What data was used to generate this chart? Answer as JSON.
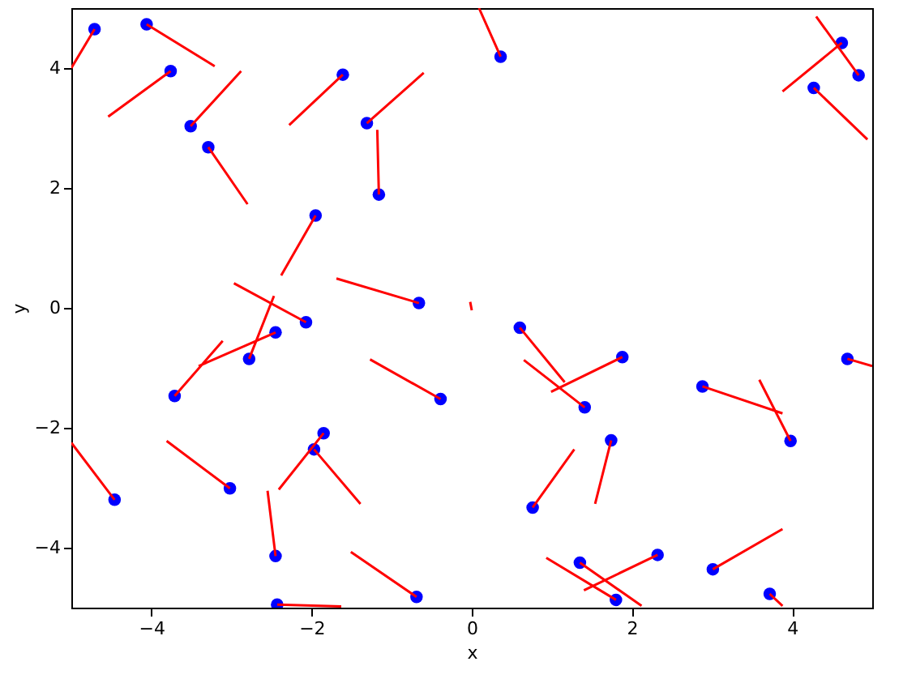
{
  "chart_data": {
    "type": "scatter",
    "xlabel": "x",
    "ylabel": "y",
    "xlim": [
      -5,
      5
    ],
    "ylim": [
      -5,
      5
    ],
    "xticks": [
      -4,
      -2,
      0,
      2,
      4
    ],
    "yticks": [
      -4,
      -2,
      0,
      2,
      4
    ],
    "grid": false,
    "series": [
      {
        "color": "#0000ff",
        "marker": "circle",
        "x": [
          -4.71,
          -4.06,
          -3.76,
          -3.51,
          -3.29,
          -1.61,
          -1.95,
          -1.31,
          -1.16,
          0.36,
          -0.66,
          -2.07,
          -2.45,
          -2.78,
          -3.71,
          -4.46,
          -3.02,
          -1.85,
          -1.97,
          -2.45,
          -2.43,
          -0.39,
          0.6,
          1.41,
          1.88,
          0.76,
          1.74,
          -0.69,
          1.35,
          1.8,
          2.32,
          2.88,
          3.98,
          4.69,
          3.01,
          3.72,
          4.62,
          4.83,
          4.27
        ],
        "values": [
          4.65,
          4.73,
          3.95,
          3.03,
          2.68,
          3.89,
          1.54,
          3.08,
          1.89,
          4.19,
          0.08,
          -0.24,
          -0.41,
          -0.85,
          -1.47,
          -3.2,
          -3.01,
          -2.09,
          -2.36,
          -4.14,
          -4.95,
          -1.52,
          -0.33,
          -1.66,
          -0.82,
          -3.33,
          -2.21,
          -4.82,
          -4.25,
          -4.87,
          -4.12,
          -1.31,
          -2.22,
          -0.85,
          -4.36,
          -4.77,
          4.42,
          3.88,
          3.67
        ]
      },
      {
        "type": "line",
        "color": "#ff0000",
        "marker": "none",
        "line_style": "solid",
        "x": [
          -4.71,
          -5.0,
          null,
          -4.06,
          -3.21,
          null,
          -3.76,
          -4.54,
          null,
          -3.51,
          -2.88,
          null,
          -3.29,
          -2.8,
          null,
          -1.61,
          -2.28,
          null,
          -1.95,
          -2.38,
          null,
          -1.31,
          -0.6,
          null,
          -1.16,
          -1.18,
          null,
          0.36,
          0.09,
          null,
          -0.66,
          -1.69,
          null,
          -0.02,
          0.0,
          null,
          -2.07,
          -2.97,
          null,
          -2.45,
          -3.41,
          null,
          -2.78,
          -2.47,
          null,
          -3.71,
          -3.11,
          null,
          -4.46,
          -5.0,
          null,
          -3.02,
          -3.81,
          null,
          -1.85,
          -2.41,
          null,
          -1.97,
          -1.39,
          null,
          -2.45,
          -2.55,
          null,
          -2.43,
          -1.63,
          null,
          -0.39,
          -1.27,
          null,
          0.6,
          1.16,
          null,
          1.41,
          0.65,
          null,
          1.88,
          0.99,
          null,
          0.76,
          1.28,
          null,
          1.74,
          1.54,
          null,
          -0.69,
          -1.51,
          null,
          1.35,
          2.12,
          null,
          1.8,
          0.93,
          null,
          2.32,
          1.4,
          null,
          2.88,
          3.88,
          null,
          3.98,
          3.59,
          null,
          4.69,
          5.0,
          null,
          3.01,
          3.88,
          null,
          3.72,
          3.88,
          null,
          4.62,
          3.88,
          null,
          4.83,
          4.3,
          null,
          4.27,
          4.94
        ],
        "values": [
          4.65,
          4.0,
          null,
          4.73,
          4.03,
          null,
          3.95,
          3.19,
          null,
          3.03,
          3.95,
          null,
          2.68,
          1.73,
          null,
          3.89,
          3.05,
          null,
          1.54,
          0.54,
          null,
          3.08,
          3.92,
          null,
          1.89,
          2.97,
          null,
          4.19,
          5.0,
          null,
          0.08,
          0.49,
          null,
          0.1,
          -0.04,
          null,
          -0.24,
          0.41,
          null,
          -0.41,
          -0.97,
          null,
          -0.85,
          0.2,
          null,
          -1.47,
          -0.55,
          null,
          -3.2,
          -2.25,
          null,
          -3.01,
          -2.22,
          null,
          -2.09,
          -3.03,
          null,
          -2.36,
          -3.27,
          null,
          -4.14,
          -3.05,
          null,
          -4.95,
          -4.98,
          null,
          -1.52,
          -0.86,
          null,
          -0.33,
          -1.24,
          null,
          -1.66,
          -0.87,
          null,
          -0.82,
          -1.4,
          null,
          -3.33,
          -2.36,
          null,
          -2.21,
          -3.27,
          null,
          -4.82,
          -4.07,
          null,
          -4.25,
          -4.97,
          null,
          -4.87,
          -4.17,
          null,
          -4.12,
          -4.71,
          null,
          -1.31,
          -1.76,
          null,
          -2.22,
          -1.2,
          null,
          -0.85,
          -0.97,
          null,
          -4.36,
          -3.69,
          null,
          -4.77,
          -4.97,
          null,
          4.42,
          3.61,
          null,
          3.88,
          4.86,
          null,
          3.67,
          2.81
        ]
      }
    ]
  }
}
